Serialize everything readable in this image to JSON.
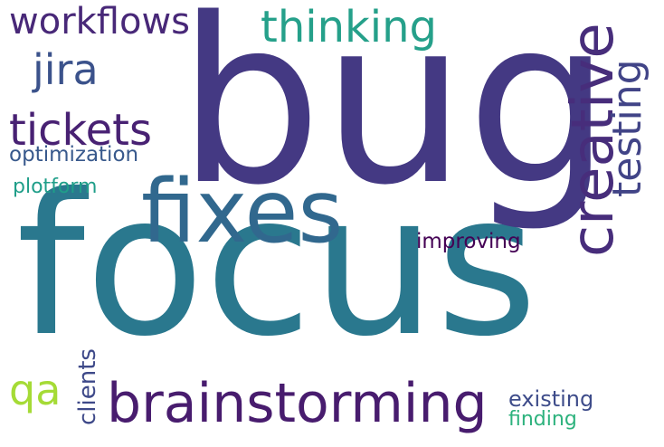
{
  "words": [
    {
      "key": "focus",
      "text": "focus",
      "color": "#2a788e"
    },
    {
      "key": "bug",
      "text": "bug",
      "color": "#443983"
    },
    {
      "key": "fixes",
      "text": "fixes",
      "color": "#31688e"
    },
    {
      "key": "brainstorming",
      "text": "brainstorming",
      "color": "#481c6e"
    },
    {
      "key": "creative",
      "text": "creative",
      "color": "#472d7b"
    },
    {
      "key": "thinking",
      "text": "thinking",
      "color": "#25a08a"
    },
    {
      "key": "testing",
      "text": "testing",
      "color": "#414487"
    },
    {
      "key": "workflows",
      "text": "workflows",
      "color": "#482878"
    },
    {
      "key": "jira",
      "text": "jira",
      "color": "#3b528b"
    },
    {
      "key": "tickets",
      "text": "tickets",
      "color": "#482173"
    },
    {
      "key": "optimization",
      "text": "optimization",
      "color": "#38598c"
    },
    {
      "key": "plotform",
      "text": "plotform",
      "color": "#1f9e89"
    },
    {
      "key": "improving",
      "text": "improving",
      "color": "#440154"
    },
    {
      "key": "qa",
      "text": "qa",
      "color": "#a5db36"
    },
    {
      "key": "clients",
      "text": "clients",
      "color": "#3e4989"
    },
    {
      "key": "existing",
      "text": "existing",
      "color": "#3e4c8a"
    },
    {
      "key": "finding",
      "text": "finding",
      "color": "#2db27d"
    }
  ]
}
